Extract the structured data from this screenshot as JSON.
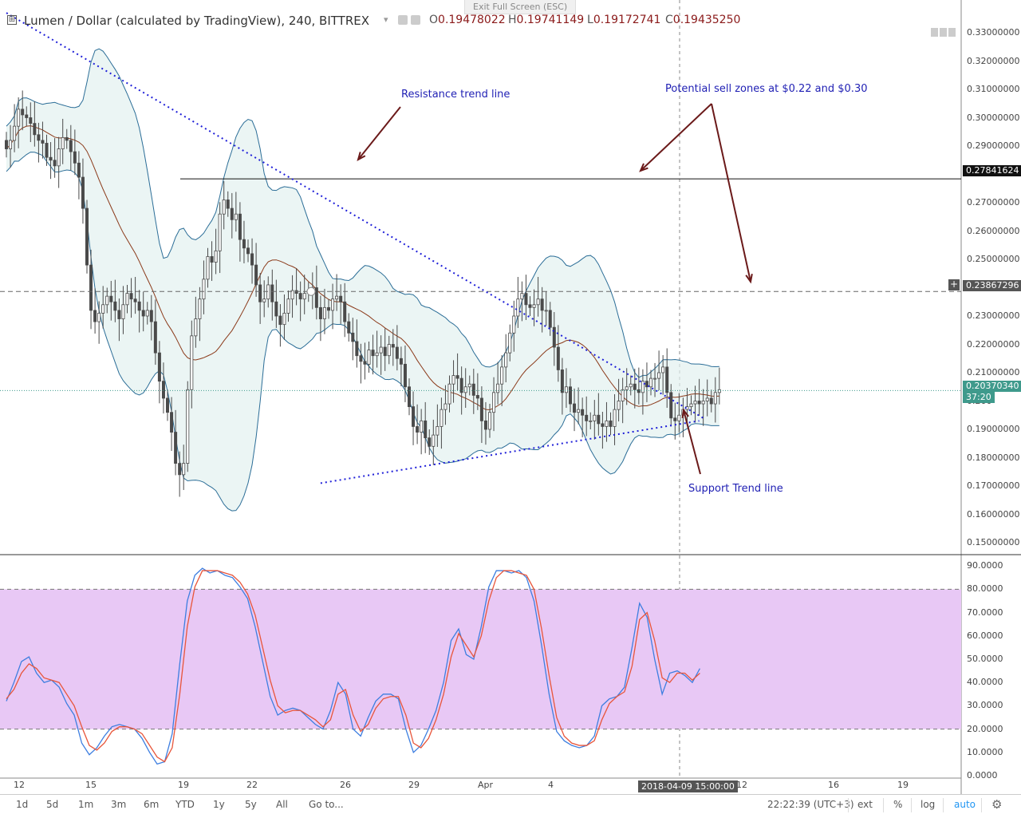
{
  "header": {
    "toggle": "⊞",
    "title": "Lumen / Dollar (calculated by TradingView), 240, BITTREX",
    "exit_fullscreen": "Exit Full Screen (ESC)",
    "ohlc": [
      {
        "key": "O",
        "value": "0.19478022"
      },
      {
        "key": "H",
        "value": "0.19741149"
      },
      {
        "key": "L",
        "value": "0.19172741"
      },
      {
        "key": "C",
        "value": "0.19435250"
      }
    ]
  },
  "price_axis": {
    "labels": [
      "0.33000000",
      "0.32000000",
      "0.31000000",
      "0.30000000",
      "0.29000000",
      "0.27000000",
      "0.26000000",
      "0.25000000",
      "0.23000000",
      "0.22000000",
      "0.21000000",
      "0.200",
      "0.19000000",
      "0.18000000",
      "0.17000000",
      "0.16000000",
      "0.15000000"
    ],
    "tags": [
      {
        "label": "0.27841624",
        "color": "#111111"
      },
      {
        "label": "0.23867296",
        "color": "#555555"
      },
      {
        "label": "0.20370340",
        "color": "#3f9a8c"
      },
      {
        "label": "37:20",
        "color": "#3f9a8c"
      }
    ],
    "plus": "+"
  },
  "stoch_axis": {
    "labels": [
      "90.0000",
      "80.0000",
      "70.0000",
      "60.0000",
      "50.0000",
      "40.0000",
      "30.0000",
      "20.0000",
      "10.0000",
      "0.0000"
    ]
  },
  "time_axis": {
    "labels": [
      "12",
      "15",
      "19",
      "22",
      "26",
      "29",
      "Apr",
      "4",
      "12",
      "16",
      "19"
    ],
    "crosshair_label": "2018-04-09 15:00:00"
  },
  "annotations": {
    "resistance": "Resistance trend line",
    "sell_zones": "Potential sell zones at $0.22 and $0.30",
    "support": "Support Trend line"
  },
  "toolbar": {
    "timeframes": [
      "1d",
      "5d",
      "1m",
      "3m",
      "6m",
      "YTD",
      "1y",
      "5y",
      "All"
    ],
    "goto": "Go to...",
    "clock": "22:22:39 (UTC+3)",
    "ext": "ext",
    "percent": "%",
    "log": "log",
    "auto": "auto"
  },
  "chart_data": [
    {
      "type": "candlestick",
      "title": "Lumen / Dollar (calculated by TradingView), 240, BITTREX",
      "interval": "240",
      "ylim": [
        0.145,
        0.335
      ],
      "x_ticks": [
        "12",
        "15",
        "19",
        "22",
        "26",
        "29",
        "Apr",
        "4",
        "12",
        "16",
        "19"
      ],
      "ohlc_last": {
        "open": 0.19478022,
        "high": 0.19741149,
        "low": 0.19172741,
        "close": 0.1943525
      },
      "current_price": 0.2037034,
      "horizontal_levels": [
        {
          "value": 0.27841624,
          "style": "solid"
        },
        {
          "value": 0.23867296,
          "style": "dashed"
        }
      ],
      "overlays": [
        "Bollinger Bands",
        "20-period basis line"
      ],
      "close_series": [
        0.289,
        0.292,
        0.297,
        0.303,
        0.301,
        0.3,
        0.298,
        0.294,
        0.292,
        0.291,
        0.286,
        0.285,
        0.283,
        0.289,
        0.293,
        0.292,
        0.288,
        0.284,
        0.279,
        0.268,
        0.248,
        0.232,
        0.228,
        0.231,
        0.234,
        0.237,
        0.235,
        0.232,
        0.229,
        0.234,
        0.238,
        0.236,
        0.235,
        0.232,
        0.23,
        0.232,
        0.228,
        0.217,
        0.207,
        0.201,
        0.196,
        0.189,
        0.178,
        0.174,
        0.178,
        0.204,
        0.223,
        0.229,
        0.236,
        0.243,
        0.251,
        0.249,
        0.253,
        0.266,
        0.271,
        0.268,
        0.264,
        0.266,
        0.257,
        0.254,
        0.252,
        0.248,
        0.241,
        0.235,
        0.236,
        0.241,
        0.235,
        0.23,
        0.227,
        0.231,
        0.236,
        0.239,
        0.238,
        0.236,
        0.238,
        0.239,
        0.24,
        0.233,
        0.229,
        0.233,
        0.232,
        0.236,
        0.237,
        0.235,
        0.228,
        0.224,
        0.221,
        0.216,
        0.214,
        0.213,
        0.218,
        0.216,
        0.217,
        0.219,
        0.216,
        0.22,
        0.219,
        0.215,
        0.213,
        0.205,
        0.198,
        0.191,
        0.189,
        0.193,
        0.187,
        0.184,
        0.188,
        0.191,
        0.197,
        0.199,
        0.206,
        0.209,
        0.208,
        0.203,
        0.205,
        0.206,
        0.202,
        0.201,
        0.193,
        0.19,
        0.196,
        0.203,
        0.206,
        0.212,
        0.217,
        0.224,
        0.23,
        0.236,
        0.238,
        0.234,
        0.233,
        0.234,
        0.236,
        0.232,
        0.232,
        0.226,
        0.219,
        0.211,
        0.203,
        0.205,
        0.199,
        0.196,
        0.197,
        0.195,
        0.193,
        0.193,
        0.195,
        0.192,
        0.191,
        0.193,
        0.191,
        0.197,
        0.2,
        0.204,
        0.205,
        0.206,
        0.204,
        0.203,
        0.207,
        0.205,
        0.208,
        0.208,
        0.21,
        0.212,
        0.203,
        0.194,
        0.193,
        0.195,
        0.197,
        0.198,
        0.199,
        0.2,
        0.199,
        0.2,
        0.201,
        0.199,
        0.203,
        0.204
      ],
      "trend_lines": [
        {
          "name": "Resistance trend line",
          "from": {
            "x_index": 0,
            "y": 0.337
          },
          "to": {
            "x_index": 173,
            "y": 0.194
          }
        },
        {
          "name": "Support Trend line",
          "from": {
            "x_index": 78,
            "y": 0.171
          },
          "to": {
            "x_index": 172,
            "y": 0.193
          }
        }
      ]
    },
    {
      "type": "line",
      "name": "Stochastic RSI",
      "ylim": [
        0,
        95
      ],
      "bands": [
        20,
        80
      ],
      "series": [
        {
          "values": [
            32,
            40,
            49,
            51,
            44,
            40,
            41,
            38,
            31,
            26,
            14,
            9,
            12,
            17,
            21,
            22,
            21,
            20,
            16,
            10,
            5,
            6,
            18,
            48,
            75,
            86,
            89,
            87,
            88,
            86,
            85,
            81,
            76,
            64,
            49,
            34,
            26,
            28,
            29,
            28,
            25,
            22,
            20,
            28,
            40,
            35,
            20,
            17,
            25,
            32,
            35,
            35,
            33,
            20,
            10,
            13,
            20,
            28,
            40,
            58,
            63,
            52,
            50,
            64,
            81,
            88,
            88,
            87,
            88,
            85,
            75,
            56,
            35,
            19,
            15,
            13,
            12,
            13,
            17,
            30,
            33,
            34,
            38,
            55,
            74,
            68,
            50,
            35,
            44,
            45,
            43,
            40,
            46
          ]
        },
        {
          "values": [
            33,
            37,
            44,
            48,
            46,
            42,
            41,
            40,
            35,
            30,
            21,
            13,
            11,
            14,
            19,
            21,
            21,
            20,
            18,
            13,
            8,
            6,
            12,
            35,
            64,
            81,
            88,
            88,
            88,
            87,
            86,
            83,
            78,
            69,
            55,
            41,
            30,
            27,
            28,
            28,
            26,
            24,
            21,
            24,
            35,
            37,
            26,
            19,
            22,
            29,
            33,
            34,
            34,
            26,
            14,
            12,
            16,
            24,
            35,
            51,
            61,
            56,
            51,
            60,
            75,
            85,
            88,
            88,
            87,
            86,
            80,
            63,
            43,
            25,
            17,
            14,
            13,
            13,
            15,
            24,
            31,
            34,
            36,
            47,
            67,
            70,
            58,
            42,
            40,
            44,
            44,
            41,
            44
          ]
        }
      ]
    }
  ]
}
